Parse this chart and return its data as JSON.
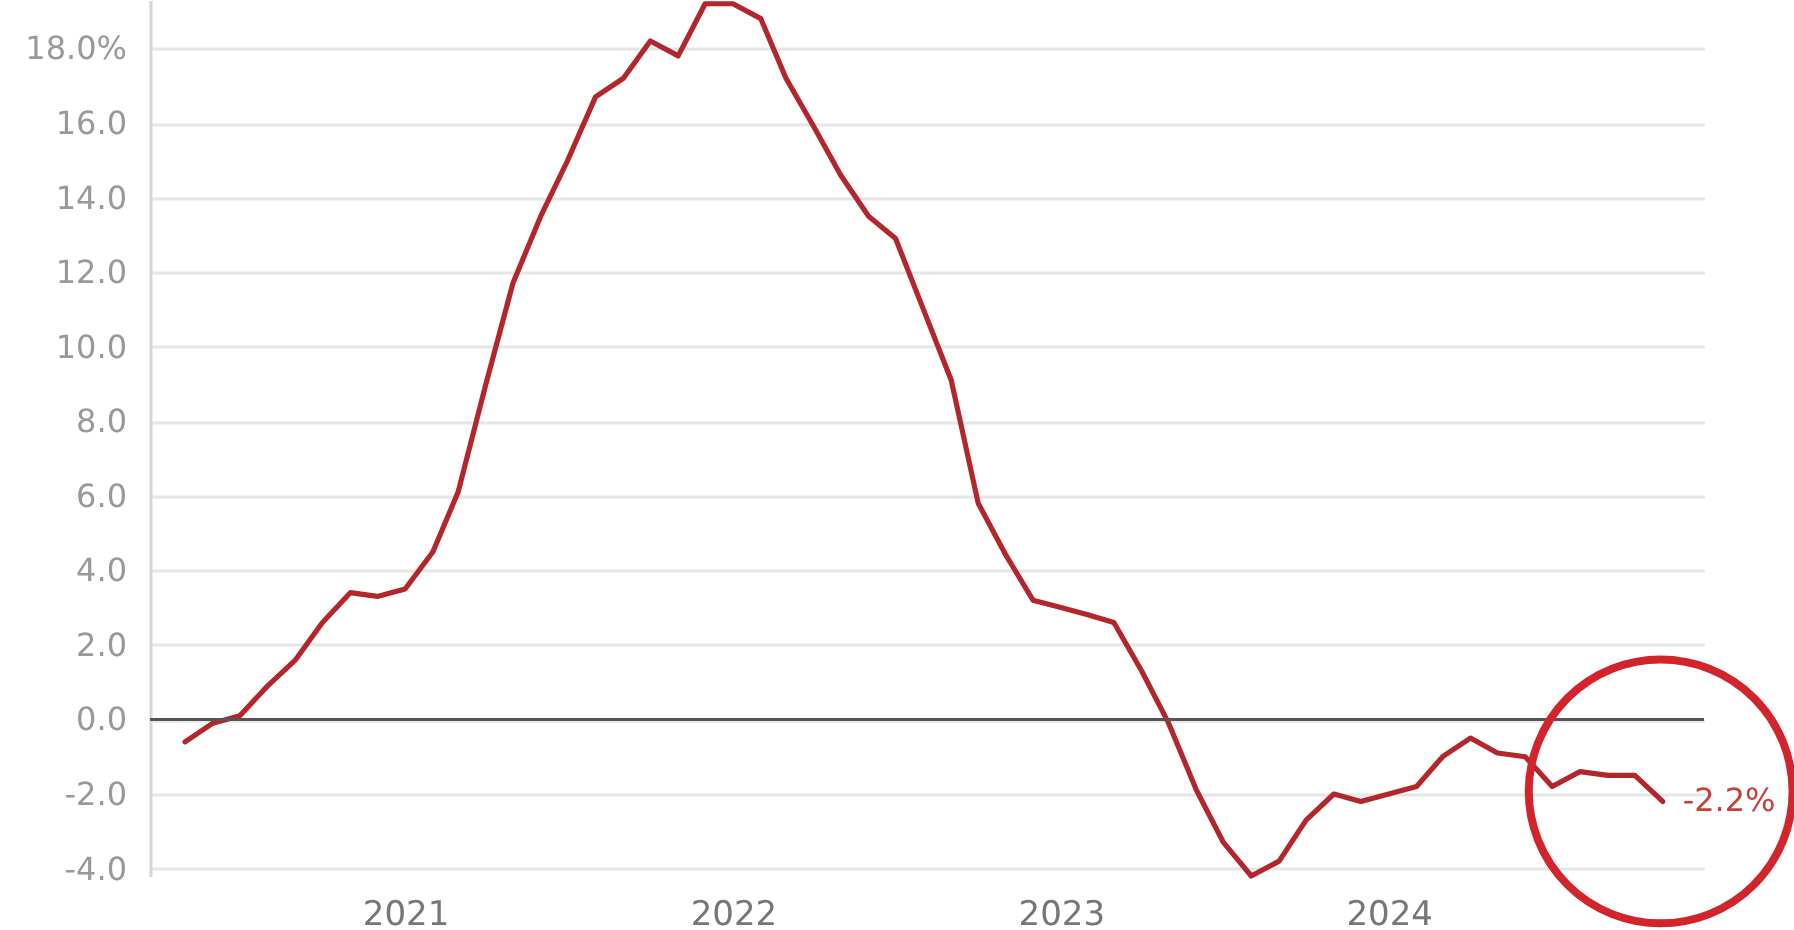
{
  "chart_data": {
    "type": "line",
    "x": [
      "2020-05",
      "2020-06",
      "2020-07",
      "2020-08",
      "2020-09",
      "2020-10",
      "2020-11",
      "2020-12",
      "2021-01",
      "2021-02",
      "2021-03",
      "2021-04",
      "2021-05",
      "2021-06",
      "2021-07",
      "2021-08",
      "2021-09",
      "2021-10",
      "2021-11",
      "2021-12",
      "2022-01",
      "2022-02",
      "2022-03",
      "2022-04",
      "2022-05",
      "2022-06",
      "2022-07",
      "2022-08",
      "2022-09",
      "2022-10",
      "2022-11",
      "2022-12",
      "2023-01",
      "2023-02",
      "2023-03",
      "2023-04",
      "2023-05",
      "2023-06",
      "2023-07",
      "2023-08",
      "2023-09",
      "2023-10",
      "2023-11",
      "2023-12",
      "2024-01",
      "2024-02",
      "2024-03",
      "2024-04",
      "2024-05",
      "2024-06",
      "2024-07",
      "2024-08",
      "2024-09",
      "2024-10",
      "2024-11"
    ],
    "series": [
      {
        "color": "#b3262b",
        "values": [
          -0.6,
          -0.1,
          0.1,
          0.9,
          1.6,
          2.6,
          3.4,
          3.3,
          3.5,
          4.5,
          6.1,
          9.0,
          11.7,
          13.5,
          15.0,
          16.7,
          17.2,
          18.2,
          17.8,
          19.2,
          19.2,
          18.8,
          17.2,
          15.9,
          14.6,
          13.5,
          12.9,
          11.0,
          9.1,
          5.8,
          4.4,
          3.2,
          3.0,
          2.8,
          2.6,
          1.3,
          -0.1,
          -1.9,
          -3.3,
          -4.2,
          -3.8,
          -2.7,
          -2.0,
          -2.2,
          -2.0,
          -1.8,
          -1.0,
          -0.5,
          -0.9,
          -1.0,
          -1.8,
          -1.4,
          -1.5,
          -1.5,
          -2.2
        ]
      }
    ],
    "xlim": [
      "2020-03-23",
      "2024-12-17"
    ],
    "xticks": [
      "2021",
      "2022",
      "2023",
      "2024"
    ],
    "ylim": [
      -4.2,
      19.3
    ],
    "yticks": [
      {
        "value": 18,
        "label": "18.0%"
      },
      {
        "value": 16,
        "label": "16.0"
      },
      {
        "value": 14,
        "label": "14.0"
      },
      {
        "value": 12,
        "label": "12.0"
      },
      {
        "value": 10,
        "label": "10.0"
      },
      {
        "value": 8,
        "label": "8.0"
      },
      {
        "value": 6,
        "label": "6.0"
      },
      {
        "value": 4,
        "label": "4.0"
      },
      {
        "value": 2,
        "label": "2.0"
      },
      {
        "value": 0,
        "label": "0.0"
      },
      {
        "value": -2,
        "label": "-2.0"
      },
      {
        "value": -4,
        "label": "-4.0"
      }
    ],
    "grid": "y",
    "ref_lines": [
      {
        "axis": "y",
        "value": 0,
        "color": "#555555"
      }
    ],
    "annotations": [
      {
        "text": "-2.2%",
        "x": "2024-11",
        "y": -2.2
      }
    ]
  }
}
